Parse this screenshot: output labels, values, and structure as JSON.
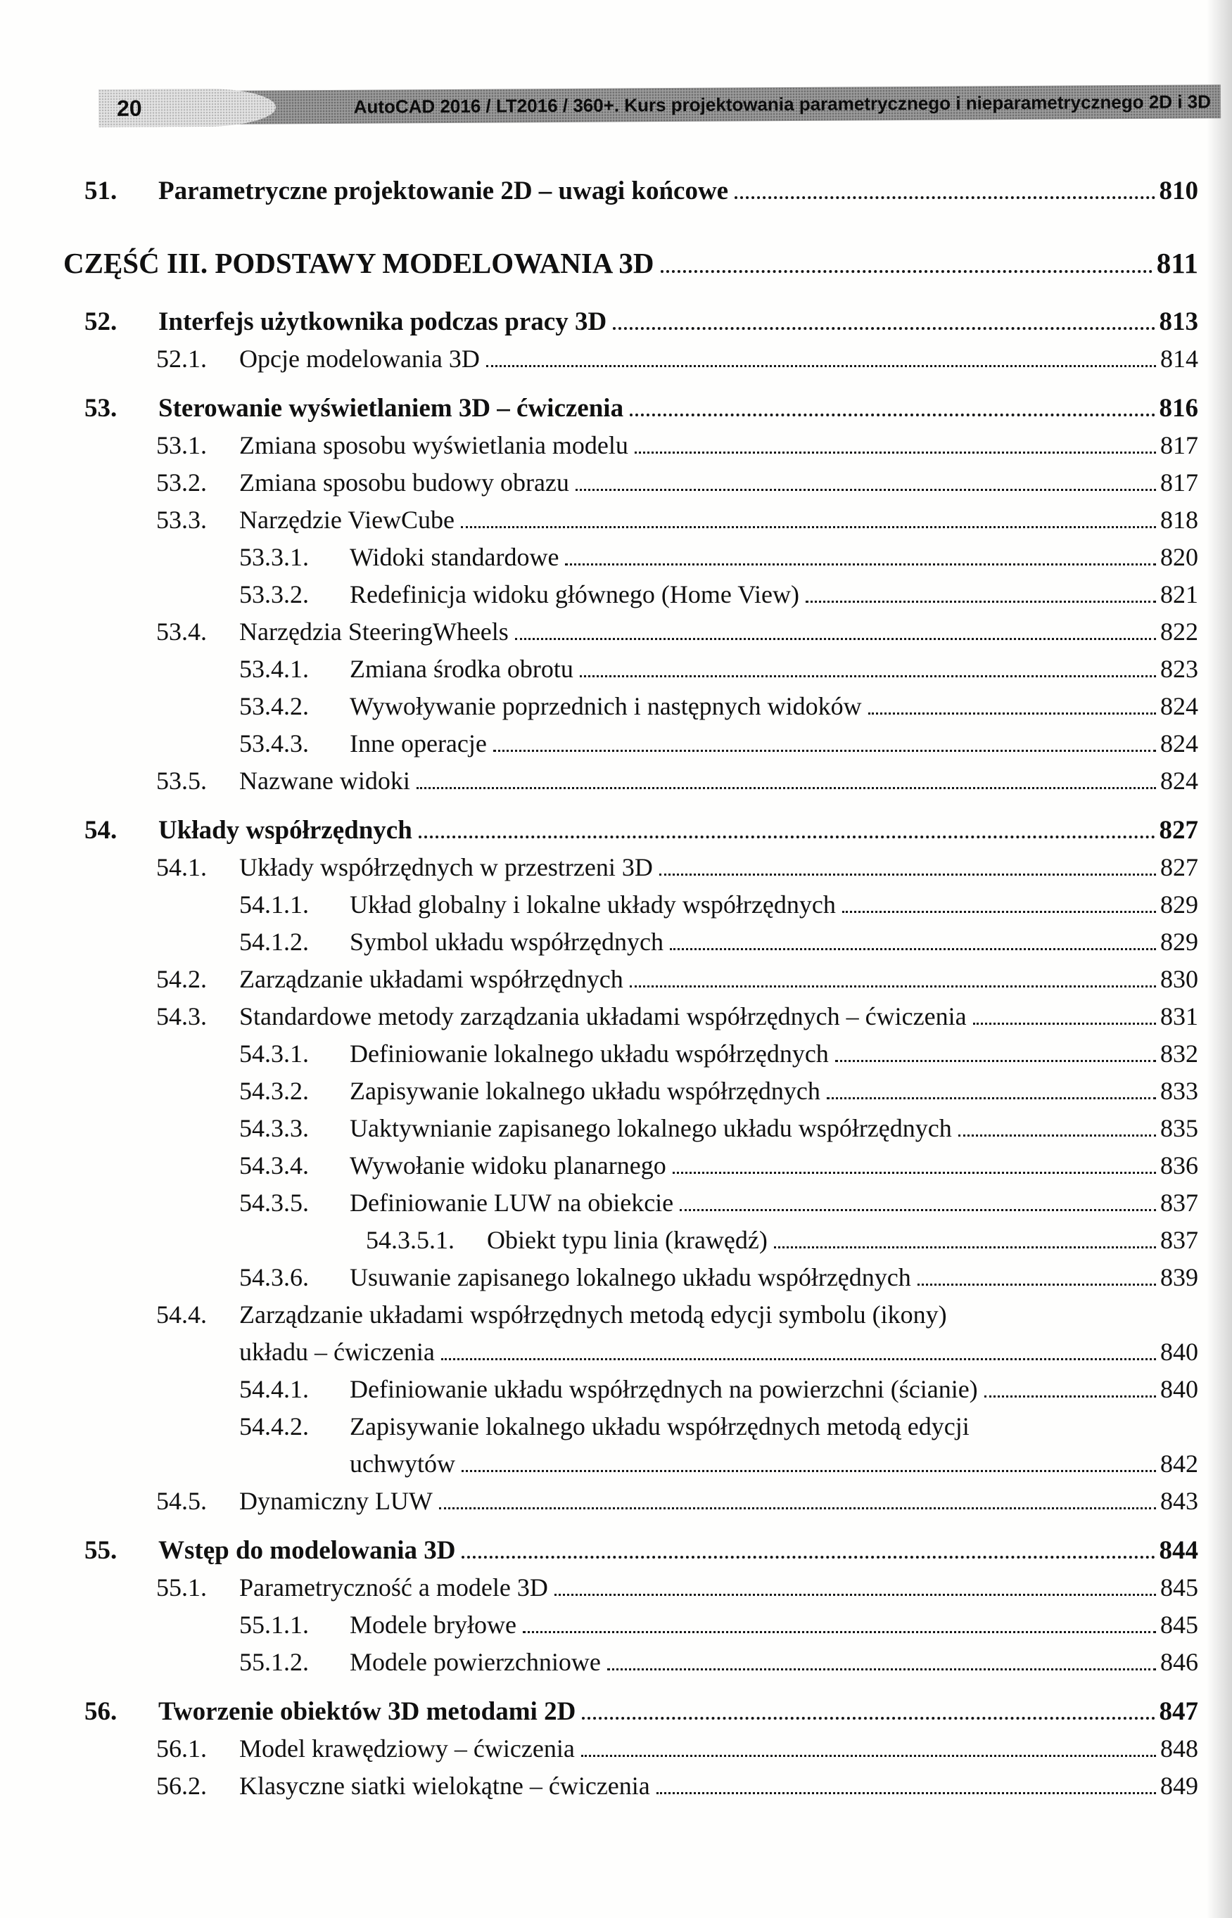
{
  "header": {
    "page_number": "20",
    "title": "AutoCAD 2016 / LT2016 / 360+. Kurs projektowania parametrycznego i nieparametrycznego 2D i 3D",
    "band_color": "#9c9c9c",
    "badge_color": "#e3e3e3"
  },
  "toc": {
    "entries": [
      {
        "level": 1,
        "number": "51.",
        "title": "Parametryczne projektowanie 2D – uwagi końcowe",
        "page": "810",
        "bold": true
      },
      {
        "level": 0,
        "number": "",
        "title": "CZĘŚĆ III. PODSTAWY MODELOWANIA 3D",
        "page": "811",
        "bold": true,
        "part": true
      },
      {
        "level": 1,
        "number": "52.",
        "title": "Interfejs użytkownika podczas pracy 3D",
        "page": "813",
        "bold": true
      },
      {
        "level": 2,
        "number": "52.1.",
        "title": "Opcje modelowania 3D",
        "page": "814"
      },
      {
        "level": 1,
        "number": "53.",
        "title": "Sterowanie wyświetlaniem 3D – ćwiczenia",
        "page": "816",
        "bold": true
      },
      {
        "level": 2,
        "number": "53.1.",
        "title": "Zmiana sposobu wyświetlania modelu",
        "page": "817"
      },
      {
        "level": 2,
        "number": "53.2.",
        "title": "Zmiana sposobu budowy obrazu",
        "page": "817"
      },
      {
        "level": 2,
        "number": "53.3.",
        "title": "Narzędzie ViewCube",
        "page": "818"
      },
      {
        "level": 3,
        "number": "53.3.1.",
        "title": "Widoki standardowe",
        "page": "820"
      },
      {
        "level": 3,
        "number": "53.3.2.",
        "title": "Redefinicja widoku głównego (Home View)",
        "page": "821"
      },
      {
        "level": 2,
        "number": "53.4.",
        "title": "Narzędzia SteeringWheels",
        "page": "822"
      },
      {
        "level": 3,
        "number": "53.4.1.",
        "title": "Zmiana środka obrotu",
        "page": "823"
      },
      {
        "level": 3,
        "number": "53.4.2.",
        "title": "Wywoływanie poprzednich i następnych widoków",
        "page": "824"
      },
      {
        "level": 3,
        "number": "53.4.3.",
        "title": "Inne operacje",
        "page": "824"
      },
      {
        "level": 2,
        "number": "53.5.",
        "title": "Nazwane widoki",
        "page": "824"
      },
      {
        "level": 1,
        "number": "54.",
        "title": "Układy współrzędnych",
        "page": "827",
        "bold": true
      },
      {
        "level": 2,
        "number": "54.1.",
        "title": "Układy współrzędnych w przestrzeni 3D",
        "page": "827"
      },
      {
        "level": 3,
        "number": "54.1.1.",
        "title": "Układ globalny i lokalne układy współrzędnych",
        "page": "829"
      },
      {
        "level": 3,
        "number": "54.1.2.",
        "title": "Symbol układu współrzędnych",
        "page": "829"
      },
      {
        "level": 2,
        "number": "54.2.",
        "title": "Zarządzanie układami współrzędnych",
        "page": "830"
      },
      {
        "level": 2,
        "number": "54.3.",
        "title": "Standardowe metody zarządzania układami współrzędnych – ćwiczenia",
        "page": "831"
      },
      {
        "level": 3,
        "number": "54.3.1.",
        "title": "Definiowanie lokalnego układu współrzędnych",
        "page": "832"
      },
      {
        "level": 3,
        "number": "54.3.2.",
        "title": "Zapisywanie lokalnego układu współrzędnych",
        "page": "833"
      },
      {
        "level": 3,
        "number": "54.3.3.",
        "title": "Uaktywnianie zapisanego lokalnego układu współrzędnych",
        "page": "835"
      },
      {
        "level": 3,
        "number": "54.3.4.",
        "title": "Wywołanie widoku planarnego",
        "page": "836"
      },
      {
        "level": 3,
        "number": "54.3.5.",
        "title": "Definiowanie LUW na obiekcie",
        "page": "837"
      },
      {
        "level": 4,
        "number": "54.3.5.1.",
        "title": "Obiekt typu linia (krawędź)",
        "page": "837"
      },
      {
        "level": 3,
        "number": "54.3.6.",
        "title": "Usuwanie zapisanego lokalnego układu współrzędnych",
        "page": "839"
      },
      {
        "level": 2,
        "number": "54.4.",
        "title": "Zarządzanie układami współrzędnych metodą edycji symbolu (ikony)",
        "page": ""
      },
      {
        "level": 2,
        "number": "",
        "title": "układu – ćwiczenia",
        "page": "840",
        "cont": true
      },
      {
        "level": 3,
        "number": "54.4.1.",
        "title": "Definiowanie układu współrzędnych na powierzchni (ścianie)",
        "page": "840"
      },
      {
        "level": 3,
        "number": "54.4.2.",
        "title": "Zapisywanie lokalnego układu współrzędnych metodą edycji",
        "page": ""
      },
      {
        "level": 3,
        "number": "",
        "title": "uchwytów",
        "page": "842",
        "cont": true
      },
      {
        "level": 2,
        "number": "54.5.",
        "title": "Dynamiczny LUW",
        "page": "843"
      },
      {
        "level": 1,
        "number": "55.",
        "title": "Wstęp do modelowania 3D",
        "page": "844",
        "bold": true
      },
      {
        "level": 2,
        "number": "55.1.",
        "title": "Parametryczność a modele 3D",
        "page": "845"
      },
      {
        "level": 3,
        "number": "55.1.1.",
        "title": "Modele bryłowe",
        "page": "845"
      },
      {
        "level": 3,
        "number": "55.1.2.",
        "title": "Modele powierzchniowe",
        "page": "846"
      },
      {
        "level": 1,
        "number": "56.",
        "title": "Tworzenie obiektów 3D metodami 2D",
        "page": "847",
        "bold": true
      },
      {
        "level": 2,
        "number": "56.1.",
        "title": "Model krawędziowy – ćwiczenia",
        "page": "848"
      },
      {
        "level": 2,
        "number": "56.2.",
        "title": "Klasyczne siatki wielokątne – ćwiczenia",
        "page": "849"
      }
    ]
  }
}
